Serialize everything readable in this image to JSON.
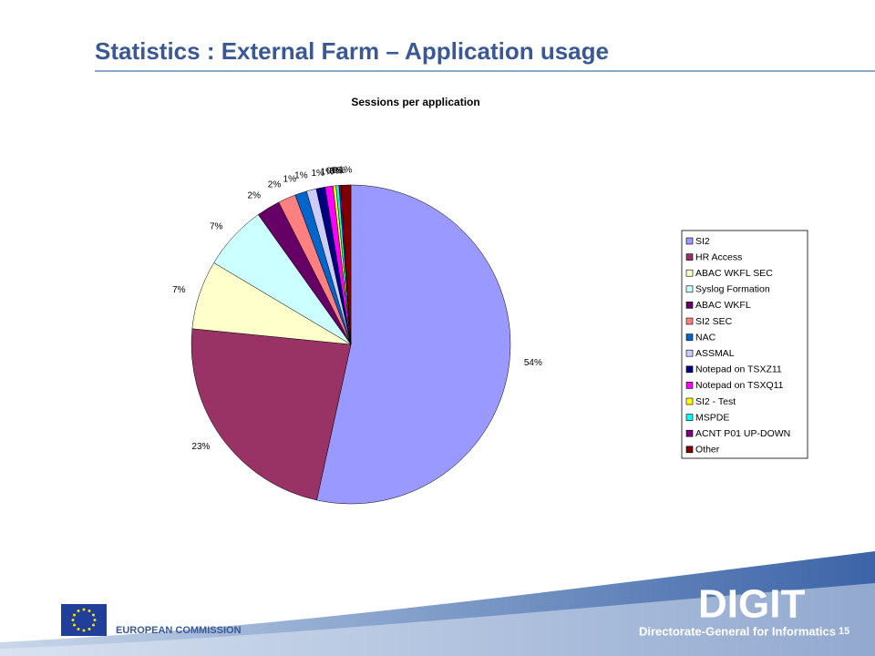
{
  "slide": {
    "title": "Statistics : External Farm – Application usage",
    "footer": {
      "organization": "EUROPEAN COMMISSION",
      "logo": "DIGIT",
      "department": "Directorate-General for Informatics",
      "page_number": "15"
    }
  },
  "chart_data": {
    "type": "pie",
    "title": "Sessions per application",
    "categories": [
      "SI2",
      "HR Access",
      "ABAC WKFL SEC",
      "Syslog Formation",
      "ABAC WKFL",
      "SI2 SEC",
      "NAC",
      "ASSMAL",
      "Notepad on TSXZ11",
      "Notepad on TSXQ11",
      "SI2 - Test",
      "MSPDE",
      "ACNT P01 UP-DOWN",
      "Other"
    ],
    "values": [
      53.6,
      23.2,
      7.0,
      6.6,
      2.4,
      1.8,
      1.2,
      1.0,
      0.9,
      0.8,
      0.3,
      0.3,
      0.2,
      1.0
    ],
    "value_labels": [
      "54%",
      "23%",
      "7%",
      "7%",
      "2%",
      "2%",
      "1%",
      "1%",
      "1%",
      "1%",
      "0%",
      "0%",
      "0%",
      "1%"
    ],
    "colors": [
      "#9999ff",
      "#993366",
      "#ffffcc",
      "#ccffff",
      "#660066",
      "#ff8080",
      "#0066cc",
      "#ccccff",
      "#000080",
      "#ff00ff",
      "#ffff00",
      "#00ffff",
      "#800080",
      "#800000"
    ]
  }
}
